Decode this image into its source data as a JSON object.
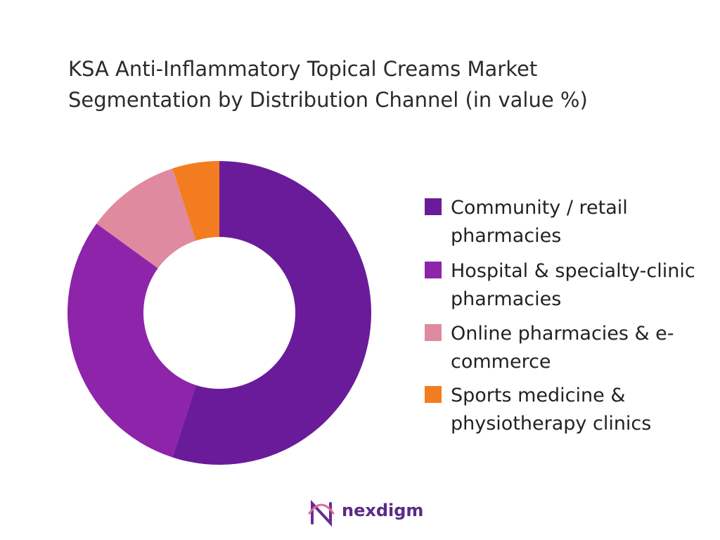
{
  "chart_data": {
    "type": "donut",
    "title": "KSA Anti-Inflammatory Topical Creams Market Segmentation by Distribution Channel (in value %)",
    "categories": [
      "Community / retail pharmacies",
      "Hospital & specialty-clinic pharmacies",
      "Online pharmacies & e-commerce",
      "Sports medicine & physiotherapy clinics"
    ],
    "values": [
      55,
      30,
      10,
      5
    ],
    "colors": [
      "#6a1b9a",
      "#8e24aa",
      "#df8a9f",
      "#f47c20"
    ]
  },
  "logo": "nexdigm"
}
